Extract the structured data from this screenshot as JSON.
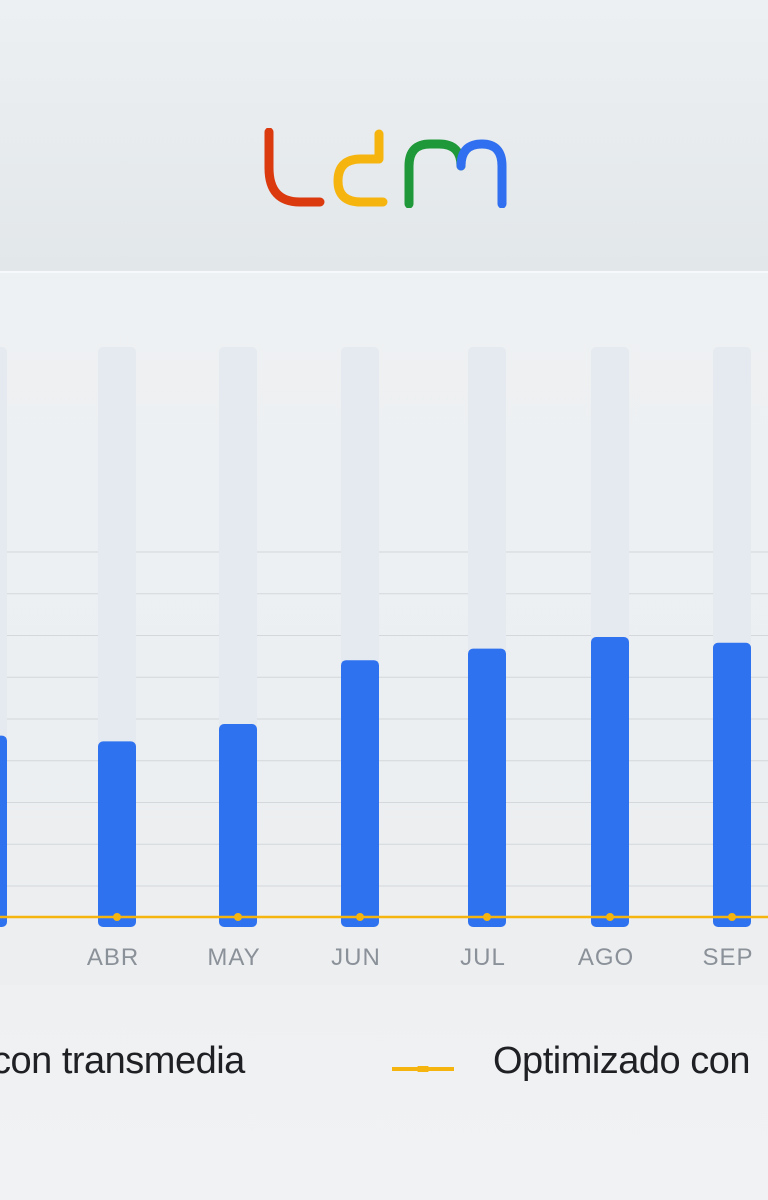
{
  "brand": {
    "logo_text": "udm",
    "logo_colors": [
      "#db3a0f",
      "#f6b40e",
      "#1e9838",
      "#2f6ff0"
    ]
  },
  "chart_data": {
    "type": "bar",
    "categories": [
      "R",
      "ABR",
      "MAY",
      "JUN",
      "JUL",
      "AGO",
      "SEP"
    ],
    "ylim": [
      0,
      100
    ],
    "grid": true,
    "series": [
      {
        "name": "con transmedia",
        "type": "bar",
        "color": "#2f72f0",
        "values": [
          33,
          32,
          35,
          46,
          48,
          50,
          49
        ]
      },
      {
        "name": "Optimizado con",
        "type": "line",
        "color": "#f6b40e",
        "values": [
          0,
          0,
          0,
          0,
          0,
          0,
          0
        ]
      }
    ]
  },
  "legend": {
    "items": [
      {
        "label": "con transmedia"
      },
      {
        "label": "Optimizado con"
      }
    ]
  }
}
